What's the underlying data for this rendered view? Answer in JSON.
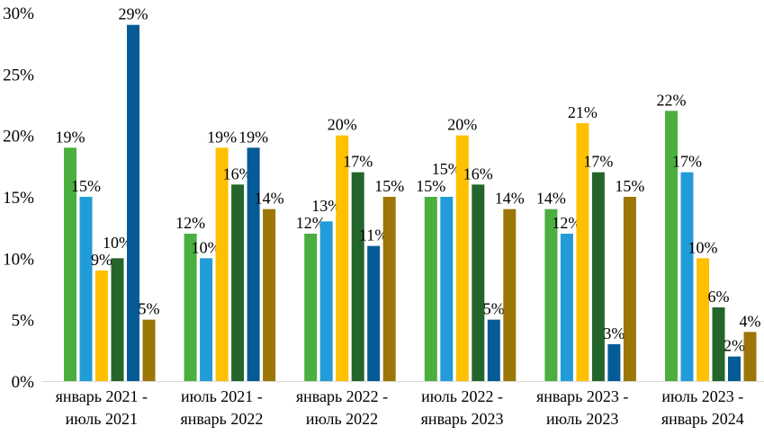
{
  "chart_data": {
    "type": "bar",
    "title": "",
    "xlabel": "",
    "ylabel": "",
    "ylim": [
      0,
      30
    ],
    "yticks": [
      "0%",
      "5%",
      "10%",
      "15%",
      "20%",
      "25%",
      "30%"
    ],
    "grid": false,
    "legend": "none",
    "categories": [
      [
        "январь 2021 -",
        "июль 2021"
      ],
      [
        "июль 2021 -",
        "январь 2022"
      ],
      [
        "январь 2022 -",
        "июль 2022"
      ],
      [
        "июль 2022 -",
        "январь 2023"
      ],
      [
        "январь 2023 -",
        "июль 2023"
      ],
      [
        "июль 2023 -",
        "январь 2024"
      ]
    ],
    "series": [
      {
        "name": "series-1",
        "color": "#4aaf3f",
        "values": [
          19,
          12,
          12,
          15,
          14,
          22
        ]
      },
      {
        "name": "series-2",
        "color": "#219cd8",
        "values": [
          15,
          10,
          13,
          15,
          12,
          17
        ]
      },
      {
        "name": "series-3",
        "color": "#ffc000",
        "values": [
          9,
          19,
          20,
          20,
          21,
          10
        ]
      },
      {
        "name": "series-4",
        "color": "#24652b",
        "values": [
          10,
          16,
          17,
          16,
          17,
          6
        ]
      },
      {
        "name": "series-5",
        "color": "#055b96",
        "values": [
          29,
          19,
          11,
          5,
          3,
          2
        ]
      },
      {
        "name": "series-6",
        "color": "#9c7607",
        "values": [
          5,
          14,
          15,
          14,
          15,
          4
        ]
      }
    ]
  }
}
